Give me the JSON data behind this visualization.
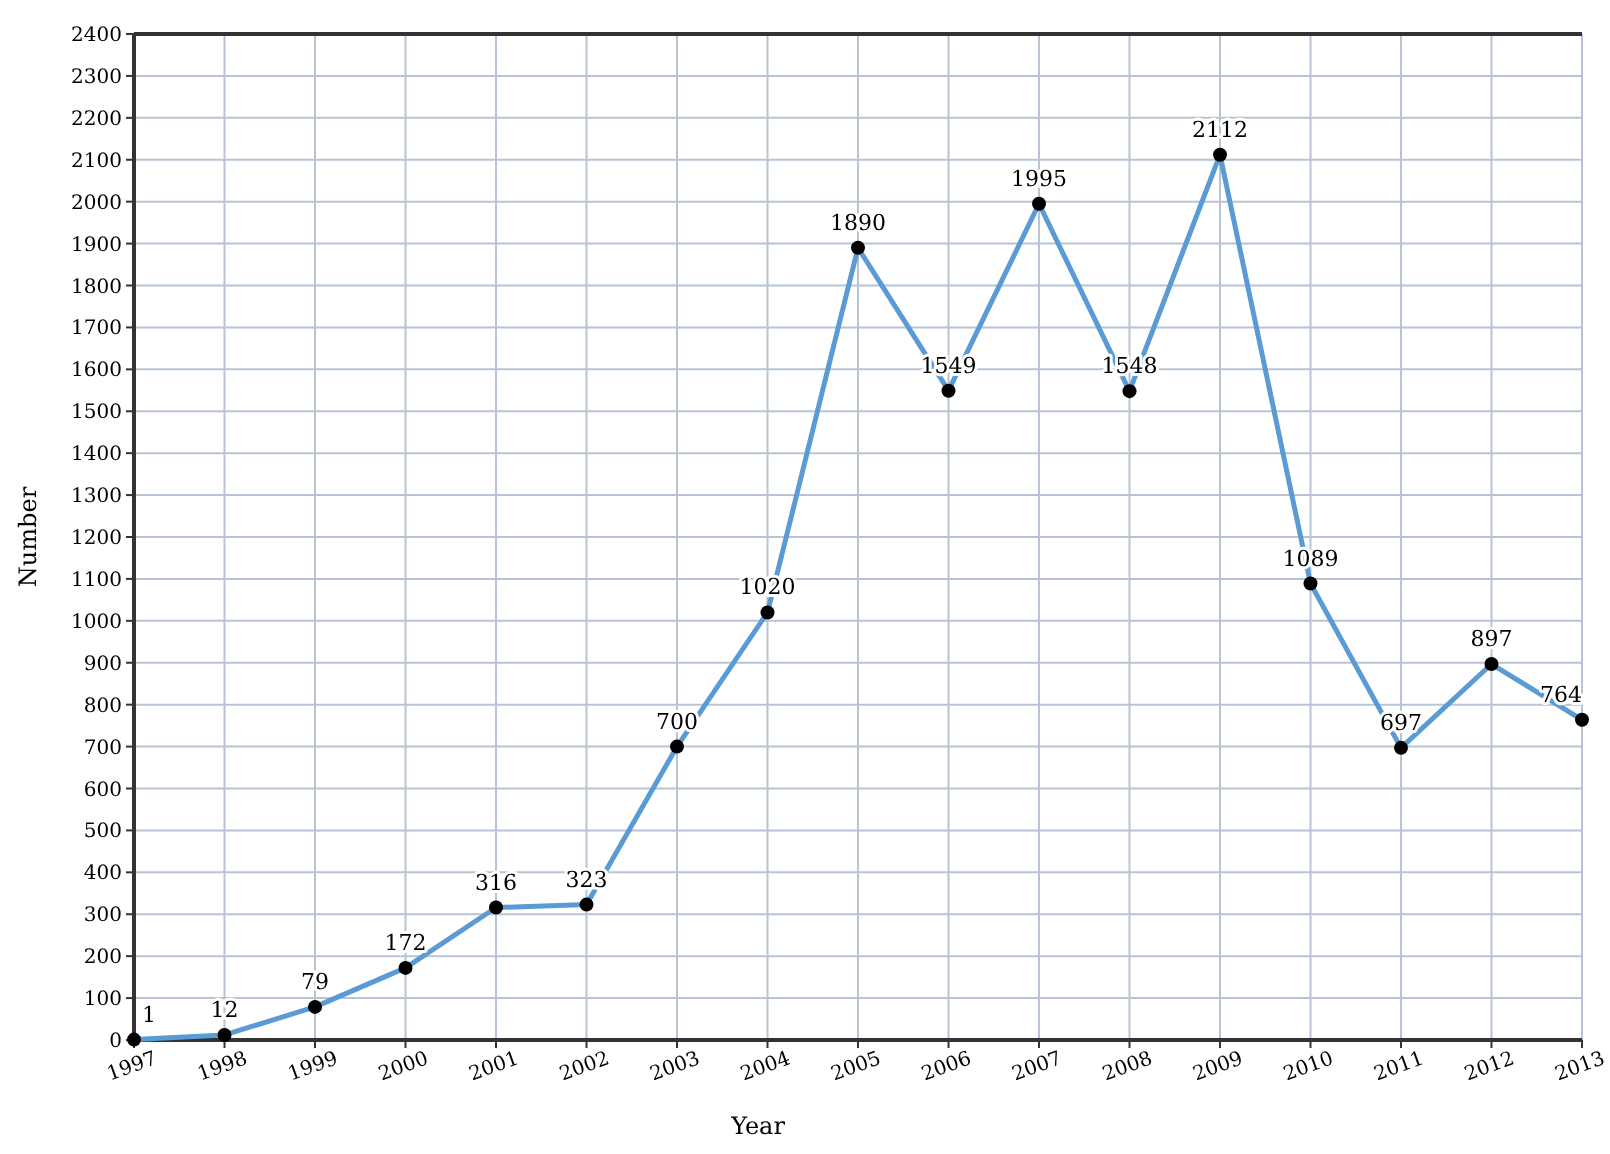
{
  "chart_data": {
    "type": "line",
    "xlabel": "Year",
    "ylabel": "Number",
    "x": [
      1997,
      1998,
      1999,
      2000,
      2001,
      2002,
      2003,
      2004,
      2005,
      2006,
      2007,
      2008,
      2009,
      2010,
      2011,
      2012,
      2013
    ],
    "series": [
      {
        "color": "#5b9bd5",
        "values": [
          1,
          12,
          79,
          172,
          316,
          323,
          700,
          1020,
          1890,
          1549,
          1995,
          1548,
          2112,
          1089,
          697,
          897,
          764
        ]
      }
    ],
    "xlim": [
      1997,
      2013
    ],
    "xticks": [
      1997,
      1998,
      1999,
      2000,
      2001,
      2002,
      2003,
      2004,
      2005,
      2006,
      2007,
      2008,
      2009,
      2010,
      2011,
      2012,
      2013
    ],
    "ylim": [
      0,
      2400
    ],
    "yticks": [
      0,
      100,
      200,
      300,
      400,
      500,
      600,
      700,
      800,
      900,
      1000,
      1100,
      1200,
      1300,
      1400,
      1500,
      1600,
      1700,
      1800,
      1900,
      2000,
      2100,
      2200,
      2300,
      2400
    ],
    "grid": true,
    "marker": "circle",
    "data_labels": true,
    "line_style": "solid"
  }
}
